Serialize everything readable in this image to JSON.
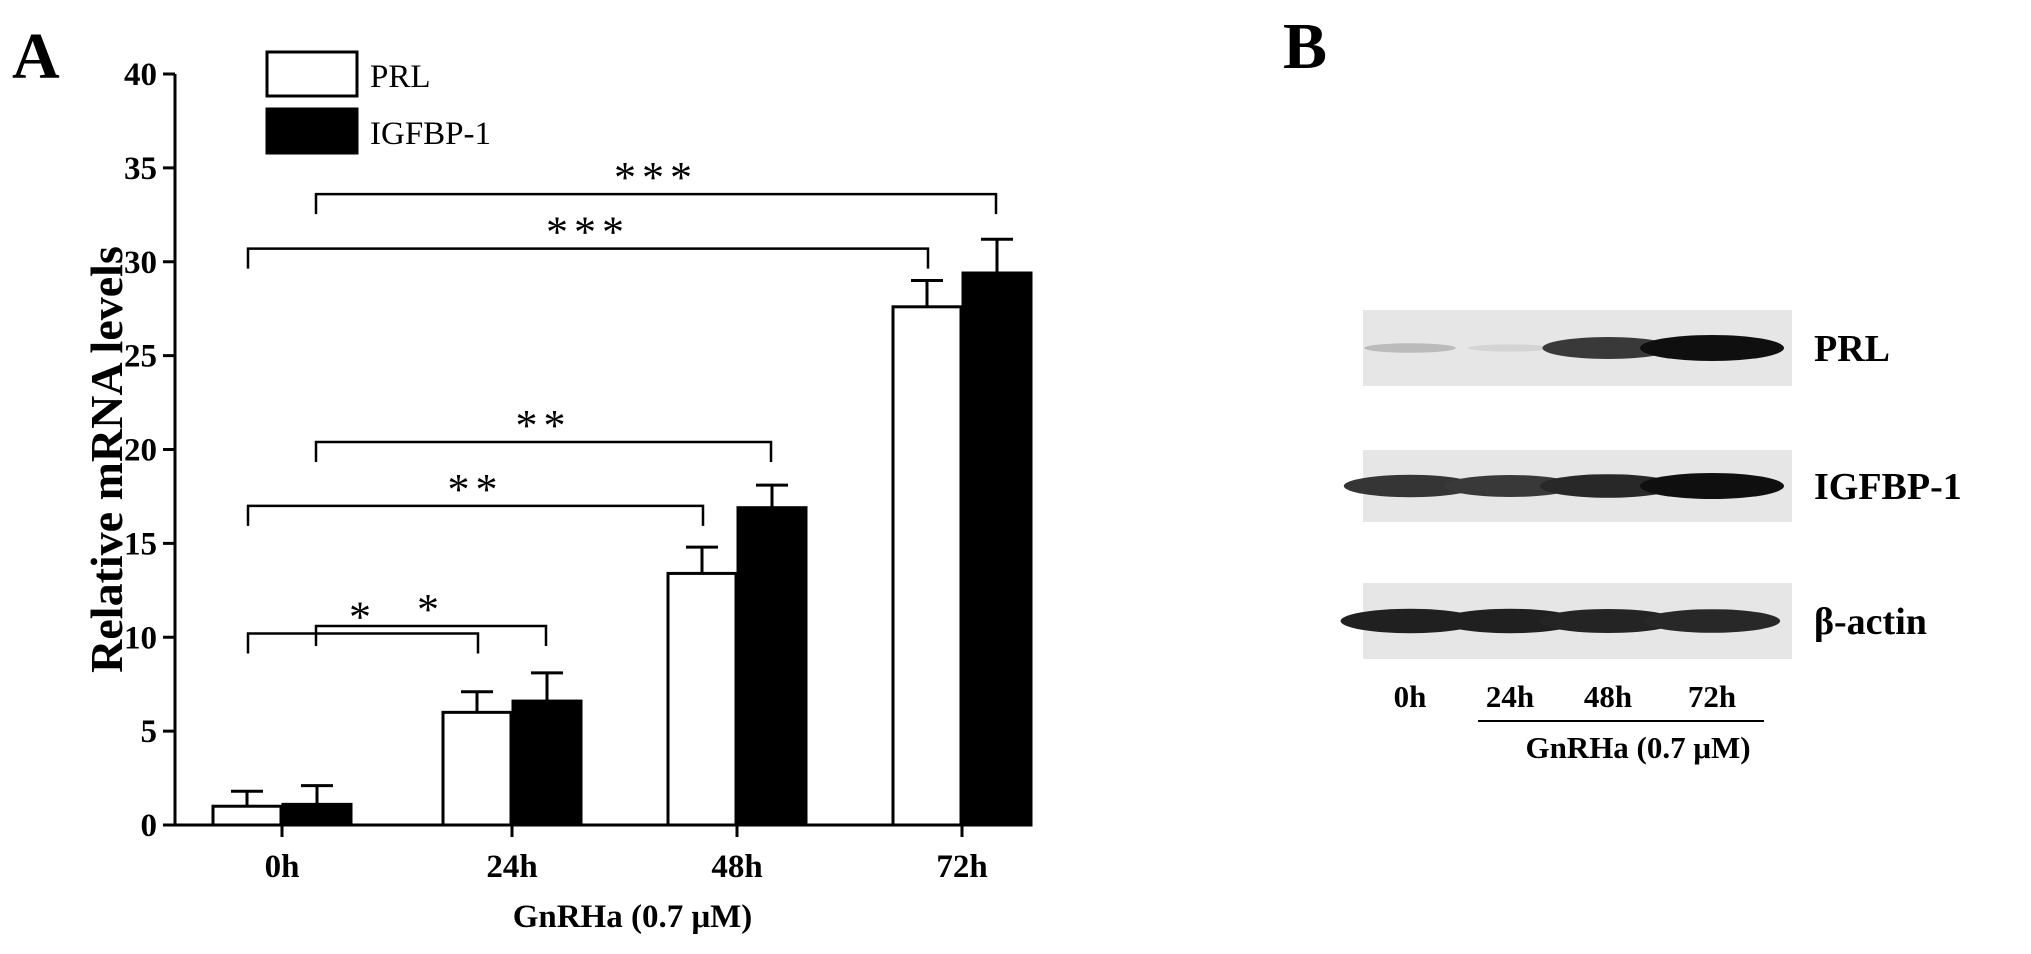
{
  "panel_a_label": "A",
  "panel_b_label": "B",
  "chart_data": {
    "type": "bar",
    "title": "",
    "xlabel": "GnRHa (0.7 μM)",
    "ylabel": "Relative mRNA levels",
    "ylim": [
      0,
      40
    ],
    "yticks": [
      0,
      5,
      10,
      15,
      20,
      25,
      30,
      35,
      40
    ],
    "categories": [
      "0h",
      "24h",
      "48h",
      "72h"
    ],
    "series": [
      {
        "name": "PRL",
        "values": [
          1.0,
          6.0,
          13.4,
          27.6
        ],
        "errors": [
          0.8,
          1.1,
          1.4,
          1.4
        ],
        "color": "#ffffff"
      },
      {
        "name": "IGFBP-1",
        "values": [
          1.1,
          6.6,
          16.9,
          29.4
        ],
        "errors": [
          1.0,
          1.5,
          1.2,
          1.8
        ],
        "color": "#000000"
      }
    ],
    "legend_position": "top-left",
    "significance": [
      {
        "from": "0h",
        "to": "24h",
        "series": "PRL",
        "label": "*"
      },
      {
        "from": "0h",
        "to": "24h",
        "series": "IGFBP-1",
        "label": "*"
      },
      {
        "from": "0h",
        "to": "48h",
        "series": "PRL",
        "label": "**"
      },
      {
        "from": "0h",
        "to": "48h",
        "series": "IGFBP-1",
        "label": "**"
      },
      {
        "from": "0h",
        "to": "72h",
        "series": "PRL",
        "label": "***"
      },
      {
        "from": "0h",
        "to": "72h",
        "series": "IGFBP-1",
        "label": "***"
      }
    ]
  },
  "western_blot": {
    "rows": [
      {
        "label": "PRL",
        "intensities": [
          0.18,
          0.06,
          0.8,
          1.0
        ]
      },
      {
        "label": "IGFBP-1",
        "intensities": [
          0.82,
          0.8,
          0.88,
          1.0
        ]
      },
      {
        "label": "β-actin",
        "intensities": [
          0.92,
          0.92,
          0.9,
          0.88
        ]
      }
    ],
    "lanes": [
      "0h",
      "24h",
      "48h",
      "72h"
    ],
    "xlabel": "GnRHa (0.7 μM)"
  }
}
